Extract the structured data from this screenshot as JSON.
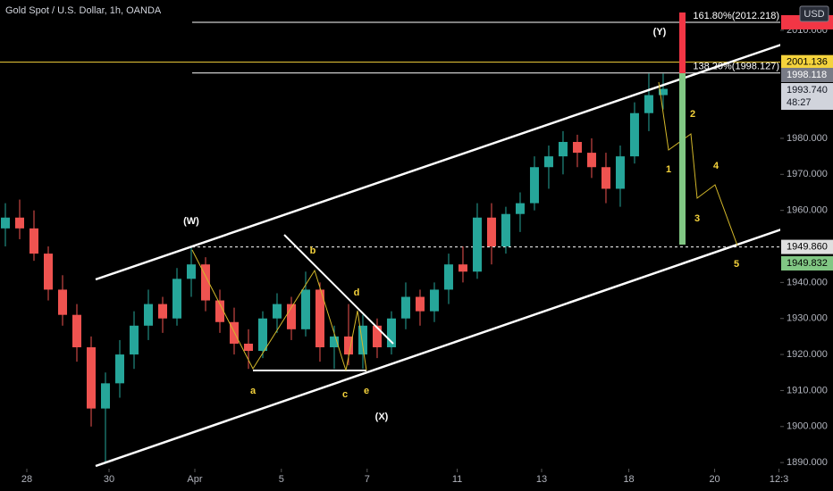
{
  "chart_data": {
    "type": "candlestick",
    "title": "Gold Spot / U.S. Dollar, 1h, OANDA",
    "x": [
      0,
      1,
      2,
      3,
      4,
      5,
      6,
      7,
      8,
      9,
      10,
      11,
      12,
      13,
      14,
      15,
      16,
      17,
      18,
      19,
      20,
      21,
      22,
      23,
      24,
      25,
      26,
      27,
      28,
      29,
      30,
      31,
      32,
      33,
      34,
      35,
      36,
      37,
      38,
      39,
      40,
      41,
      42,
      43,
      44,
      45,
      46
    ],
    "open": [
      1955,
      1958,
      1955,
      1948,
      1938,
      1931,
      1922,
      1905,
      1912,
      1920,
      1928,
      1934,
      1930,
      1941,
      1945,
      1935,
      1929,
      1923,
      1921,
      1930,
      1934,
      1927,
      1938,
      1922,
      1925,
      1920,
      1928,
      1922,
      1930,
      1936,
      1932,
      1938,
      1945,
      1943,
      1958,
      1950,
      1959,
      1962,
      1972,
      1975,
      1979,
      1976,
      1972,
      1966,
      1975,
      1987,
      1992
    ],
    "high": [
      1962,
      1963,
      1960,
      1950,
      1942,
      1934,
      1925,
      1915,
      1924,
      1932,
      1938,
      1936,
      1944,
      1950,
      1947,
      1938,
      1933,
      1927,
      1932,
      1937,
      1936,
      1943,
      1940,
      1928,
      1934,
      1931,
      1930,
      1932,
      1940,
      1938,
      1940,
      1948,
      1950,
      1962,
      1962,
      1961,
      1965,
      1975,
      1978,
      1982,
      1981,
      1980,
      1976,
      1978,
      1990,
      1998,
      1998
    ],
    "low": [
      1950,
      1952,
      1946,
      1935,
      1928,
      1918,
      1900,
      1890,
      1908,
      1916,
      1924,
      1926,
      1928,
      1936,
      1932,
      1926,
      1920,
      1916,
      1919,
      1926,
      1924,
      1925,
      1918,
      1916,
      1917,
      1916,
      1919,
      1920,
      1927,
      1928,
      1929,
      1934,
      1940,
      1941,
      1945,
      1948,
      1954,
      1960,
      1966,
      1970,
      1972,
      1969,
      1962,
      1961,
      1973,
      1982,
      1988
    ],
    "close": [
      1958,
      1955,
      1948,
      1938,
      1931,
      1922,
      1905,
      1912,
      1920,
      1928,
      1934,
      1930,
      1941,
      1945,
      1935,
      1929,
      1923,
      1921,
      1930,
      1934,
      1927,
      1938,
      1922,
      1925,
      1920,
      1928,
      1922,
      1930,
      1936,
      1932,
      1938,
      1945,
      1943,
      1958,
      1950,
      1959,
      1962,
      1972,
      1975,
      1979,
      1976,
      1972,
      1966,
      1975,
      1987,
      1992,
      1993.74
    ],
    "up_color": "#26a69a",
    "down_color": "#ef5350",
    "xlim": [
      -0.375,
      54.19
    ],
    "xticks": [
      {
        "value": 1.5,
        "label": "28"
      },
      {
        "value": 7.25,
        "label": "30"
      },
      {
        "value": 13.25,
        "label": "Apr"
      },
      {
        "value": 19.3,
        "label": "5"
      },
      {
        "value": 25.3,
        "label": "7"
      },
      {
        "value": 31.6,
        "label": "11"
      },
      {
        "value": 37.5,
        "label": "13"
      },
      {
        "value": 43.6,
        "label": "18"
      },
      {
        "value": 49.6,
        "label": "20"
      },
      {
        "value": 54.1,
        "label": "12:3"
      }
    ],
    "ylim": [
      1888.3,
      2018.4
    ],
    "yticks": [
      {
        "value": 2010,
        "label": "2010.000"
      },
      {
        "value": 1980,
        "label": "1980.000"
      },
      {
        "value": 1970,
        "label": "1970.000"
      },
      {
        "value": 1960,
        "label": "1960.000"
      },
      {
        "value": 1940,
        "label": "1940.000"
      },
      {
        "value": 1930,
        "label": "1930.000"
      },
      {
        "value": 1920,
        "label": "1920.000"
      },
      {
        "value": 1910,
        "label": "1910.000"
      },
      {
        "value": 1900,
        "label": "1900.000"
      },
      {
        "value": 1890,
        "label": "1890.000"
      }
    ],
    "levels": [
      {
        "value": 2012.218,
        "label": "161.80%(2012.218)",
        "color": "#ffffff"
      },
      {
        "value": 1998.127,
        "label": "138.20%(1998.127)",
        "color": "#ffffff"
      },
      {
        "value": 2001.136,
        "label": "2001.136",
        "color": "#f5d33c"
      },
      {
        "value": 1949.86,
        "label": "1949.860",
        "color": "#ffffff"
      }
    ],
    "price_badges": [
      "1998.118",
      "1993.740",
      "48:27",
      "1949.832"
    ],
    "currency": "USD",
    "annotations": [
      "(W)",
      "(X)",
      "(Y)",
      "a",
      "b",
      "c",
      "d",
      "e",
      "1",
      "2",
      "3",
      "4",
      "5"
    ]
  }
}
